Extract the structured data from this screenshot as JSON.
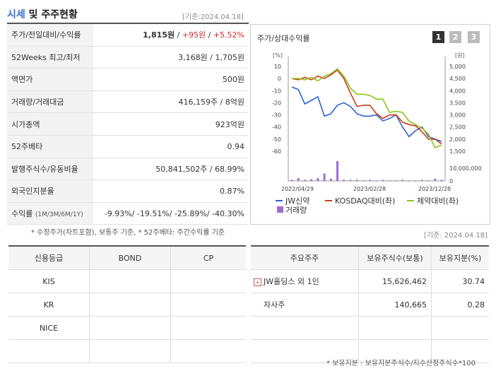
{
  "header": {
    "title_a": "시세",
    "title_b": "및 주주현황",
    "date": "[기준:2024.04.18]"
  },
  "quote_rows": [
    {
      "key": "주가/전일대비/수익률",
      "price": "1,815원",
      "change": "+95원",
      "pct": "+5.52%"
    },
    {
      "key": "52Weeks 최고/최저",
      "value": "3,168원 / 1,705원"
    },
    {
      "key": "액면가",
      "value": "500원"
    },
    {
      "key": "거래량/거래대금",
      "value": "416,159주 / 8억원"
    },
    {
      "key": "시가총액",
      "value": "923억원"
    },
    {
      "key": "52주베타",
      "value": "0.94"
    },
    {
      "key": "발행주식수/유동비율",
      "value": "50,841,502주 / 68.99%"
    },
    {
      "key": "외국인지분율",
      "value": "0.87%"
    },
    {
      "key": "수익률",
      "key_small": "(1M/3M/6M/1Y)",
      "value": "-9.93%/ -19.51%/ -25.89%/ -40.30%"
    }
  ],
  "note1": "* 수정주가(차트포함), 보통주 기준, * 52주베타: 주간수익률 기준",
  "chart_title": "주가/상대수익률",
  "period_buttons": [
    "1",
    "2",
    "3"
  ],
  "chart_data": {
    "type": "line",
    "left_unit": "[%]",
    "right_unit": "[원]",
    "left_ticks": [
      "10",
      "0",
      "-10",
      "-20",
      "-30",
      "-40",
      "-50",
      "-60"
    ],
    "right_ticks": [
      "5,000",
      "4,500",
      "4,000",
      "3,500",
      "3,000",
      "2,500",
      "2,000",
      "1,500"
    ],
    "volume_tick": "10,000,000",
    "volume_zero": "0",
    "x_labels": [
      "2022/04/29",
      "2023/02/28",
      "2023/12/28"
    ],
    "ylim": [
      -60,
      10
    ],
    "series": [
      {
        "name": "JW신약",
        "color": "#2f62d9",
        "values": [
          -7,
          -9,
          -21,
          -18,
          -15,
          -31,
          -29,
          -22,
          -20,
          -23,
          -29,
          -31,
          -31,
          -30,
          -35,
          -33,
          -30,
          -40,
          -48,
          -43,
          -40,
          -48,
          -50,
          -52
        ]
      },
      {
        "name": "KOSDAQ대비(좌)",
        "color": "#cc3a1a",
        "values": [
          0,
          -1,
          1,
          -1,
          2,
          0,
          3,
          7,
          0,
          -12,
          -23,
          -22,
          -22,
          -29,
          -33,
          -30,
          -30,
          -36,
          -38,
          -39,
          -44,
          -50,
          -50,
          -54
        ]
      },
      {
        "name": "제약대비(좌)",
        "color": "#8cc21a",
        "values": [
          0,
          0,
          -1,
          1,
          -2,
          2,
          4,
          8,
          2,
          -8,
          -13,
          -13,
          -14,
          -17,
          -17,
          -28,
          -27,
          -28,
          -35,
          -38,
          -41,
          -46,
          -57,
          -55
        ]
      }
    ],
    "volume": {
      "name": "거래량",
      "color": "#9b6fd1",
      "values": [
        0.02,
        0.05,
        0.02,
        0.03,
        0.05,
        0.13,
        0.04,
        0.35,
        0.02,
        0.02,
        0.02,
        0.01,
        0.02,
        0.01,
        0.02,
        0.01,
        0.01,
        0.02,
        0.01,
        0.01,
        0.02,
        0.01,
        0.04,
        0.02
      ],
      "max": 0.4
    }
  },
  "note2": "[기준: 2024.04.18]",
  "credit": {
    "headers": [
      "신용등급",
      "BOND",
      "CP"
    ],
    "rows": [
      [
        "KIS",
        "",
        ""
      ],
      [
        "KR",
        "",
        ""
      ],
      [
        "NICE",
        "",
        ""
      ],
      [
        "",
        "",
        ""
      ]
    ]
  },
  "holders": {
    "headers": [
      "주요주주",
      "보유주식수(보통)",
      "보유지분(%)"
    ],
    "rows": [
      {
        "name": "JW홀딩스 외 1인",
        "shares": "15,626,462",
        "pct": "30.74",
        "plus": "+"
      },
      {
        "name": "자사주",
        "shares": "140,665",
        "pct": "0.28"
      },
      {
        "name": "",
        "shares": "",
        "pct": ""
      },
      {
        "name": "",
        "shares": "",
        "pct": ""
      }
    ]
  },
  "note3": "* 보유지분 : 보유지분주식수/지수산정주식수*100"
}
